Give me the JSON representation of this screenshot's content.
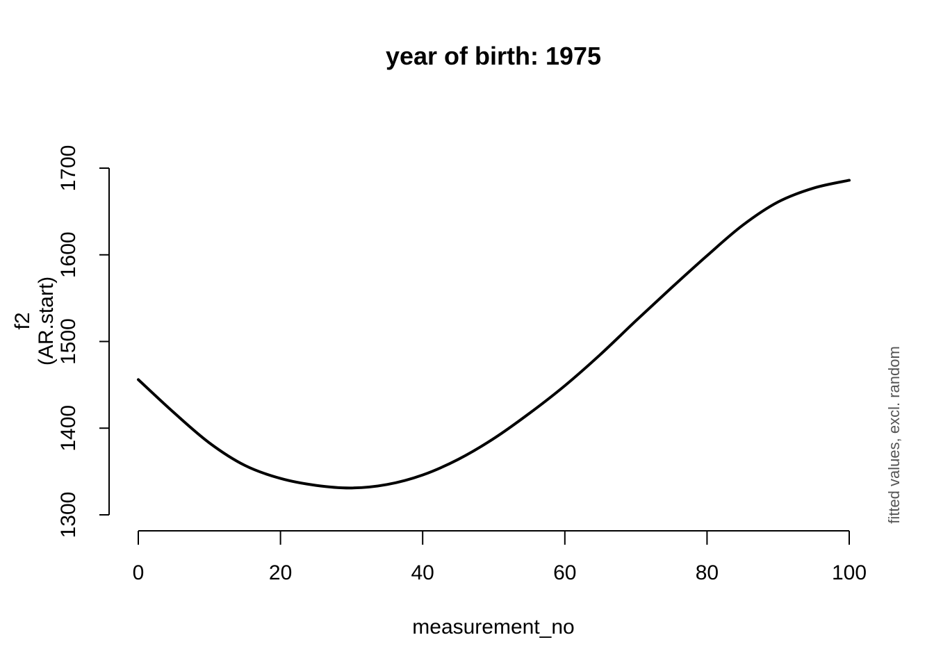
{
  "chart_data": {
    "type": "line",
    "title": "year of birth: 1975",
    "xlabel": "measurement_no",
    "ylabel_line1": "f2",
    "ylabel_line2": "(AR.start)",
    "side_note": "fitted values, excl. random",
    "xlim": [
      0,
      100
    ],
    "ylim": [
      1300,
      1700
    ],
    "x_ticks": [
      0,
      20,
      40,
      60,
      80,
      100
    ],
    "y_ticks": [
      1300,
      1400,
      1500,
      1600,
      1700
    ],
    "grid": false,
    "series": [
      {
        "x": [
          0,
          5,
          10,
          15,
          20,
          25,
          30,
          35,
          40,
          45,
          50,
          55,
          60,
          65,
          70,
          75,
          80,
          85,
          90,
          95,
          100
        ],
        "values": [
          1456,
          1418,
          1383,
          1357,
          1342,
          1334,
          1331,
          1335,
          1346,
          1364,
          1388,
          1417,
          1449,
          1485,
          1524,
          1562,
          1599,
          1634,
          1661,
          1677,
          1686
        ]
      }
    ],
    "colors": {
      "line": "#000000",
      "note": "#555555"
    }
  }
}
